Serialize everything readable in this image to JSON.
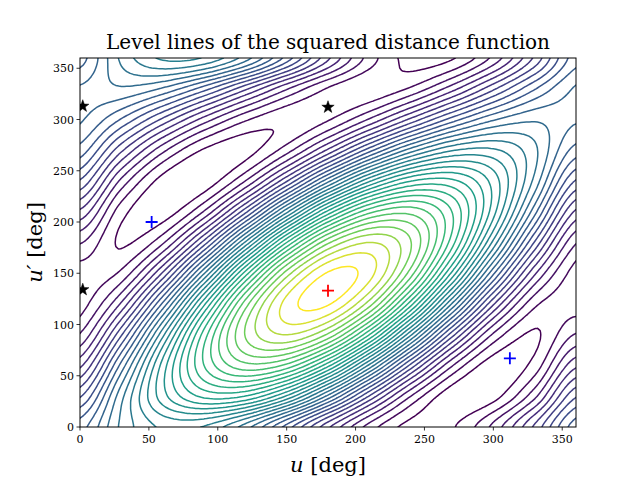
{
  "chart_data": {
    "type": "contour",
    "title": "Level lines of the squared distance function",
    "x_label": "u [deg]",
    "y_label": "u′ [deg]",
    "xlim": [
      0,
      360
    ],
    "ylim": [
      0,
      360
    ],
    "xticks": [
      0,
      50,
      100,
      150,
      200,
      250,
      300,
      350
    ],
    "yticks": [
      0,
      50,
      100,
      150,
      200,
      250,
      300,
      350
    ],
    "contour": {
      "x": [
        0,
        30,
        60,
        90,
        120,
        150,
        180,
        210,
        240,
        270,
        300,
        330,
        360
      ],
      "y": [
        0,
        30,
        60,
        90,
        120,
        150,
        180,
        210,
        240,
        270,
        300,
        330,
        360
      ],
      "z": [
        [
          2.836,
          3.383,
          3.676,
          3.636,
          3.274,
          2.687,
          2.032,
          1.485,
          1.192,
          1.232,
          1.594,
          2.181,
          2.836
        ],
        [
          2.433,
          3.302,
          4.035,
          4.435,
          4.395,
          3.926,
          3.153,
          2.284,
          1.551,
          1.151,
          1.191,
          1.66,
          2.433
        ],
        [
          1.967,
          2.954,
          4.009,
          4.849,
          5.249,
          5.102,
          4.447,
          3.46,
          2.405,
          1.565,
          1.165,
          1.312,
          1.967
        ],
        [
          1.564,
          2.433,
          3.606,
          4.768,
          5.608,
          5.901,
          5.568,
          4.699,
          3.526,
          2.364,
          1.524,
          1.231,
          1.564
        ],
        [
          1.331,
          1.878,
          2.933,
          4.213,
          5.375,
          6.108,
          6.215,
          5.668,
          4.613,
          3.333,
          2.171,
          1.438,
          1.331
        ],
        [
          1.331,
          1.438,
          2.171,
          3.333,
          4.613,
          5.668,
          6.215,
          6.108,
          5.375,
          4.213,
          2.933,
          1.878,
          1.331
        ],
        [
          1.564,
          1.231,
          1.524,
          2.364,
          3.526,
          4.699,
          5.568,
          5.901,
          5.608,
          4.768,
          3.606,
          2.433,
          1.564
        ],
        [
          1.967,
          1.312,
          1.165,
          1.565,
          2.405,
          3.46,
          4.447,
          5.102,
          5.249,
          4.849,
          4.009,
          2.954,
          1.967
        ],
        [
          2.433,
          1.66,
          1.191,
          1.151,
          1.551,
          2.284,
          3.153,
          3.926,
          4.395,
          4.435,
          4.035,
          3.302,
          2.433
        ],
        [
          2.836,
          2.181,
          1.594,
          1.232,
          1.192,
          1.485,
          2.032,
          2.687,
          3.274,
          3.636,
          3.676,
          3.383,
          2.836
        ],
        [
          3.069,
          2.736,
          2.267,
          1.787,
          1.425,
          1.278,
          1.385,
          1.718,
          2.187,
          2.667,
          3.029,
          3.176,
          3.069
        ],
        [
          3.069,
          3.176,
          3.029,
          2.667,
          2.187,
          1.718,
          1.385,
          1.278,
          1.425,
          1.787,
          2.267,
          2.736,
          3.069
        ],
        [
          2.836,
          3.383,
          3.676,
          3.636,
          3.274,
          2.687,
          2.032,
          1.485,
          1.192,
          1.232,
          1.594,
          2.181,
          2.836
        ]
      ],
      "levels": [
        1.25,
        1.4,
        1.55,
        1.7,
        1.85,
        2.0,
        2.15,
        2.3,
        2.45,
        2.6,
        2.75,
        2.9,
        3.05,
        3.2,
        3.35,
        3.5,
        3.65,
        3.8,
        3.95,
        4.1,
        4.25,
        4.4,
        4.55,
        4.7,
        4.85,
        5.0,
        5.15,
        5.3,
        5.45,
        5.6,
        5.75,
        5.9,
        6.05,
        6.2
      ]
    },
    "series": [
      {
        "type": "scatter",
        "color": "red",
        "marker": "plus",
        "x": [
          180
        ],
        "y": [
          133
        ]
      },
      {
        "type": "scatter",
        "color": "blue",
        "marker": "plus",
        "x": [
          52,
          312
        ],
        "y": [
          200,
          67
        ]
      },
      {
        "type": "scatter",
        "color": "black",
        "marker": "star",
        "x": [
          2,
          180,
          2
        ],
        "y": [
          313,
          312,
          134
        ]
      }
    ]
  }
}
